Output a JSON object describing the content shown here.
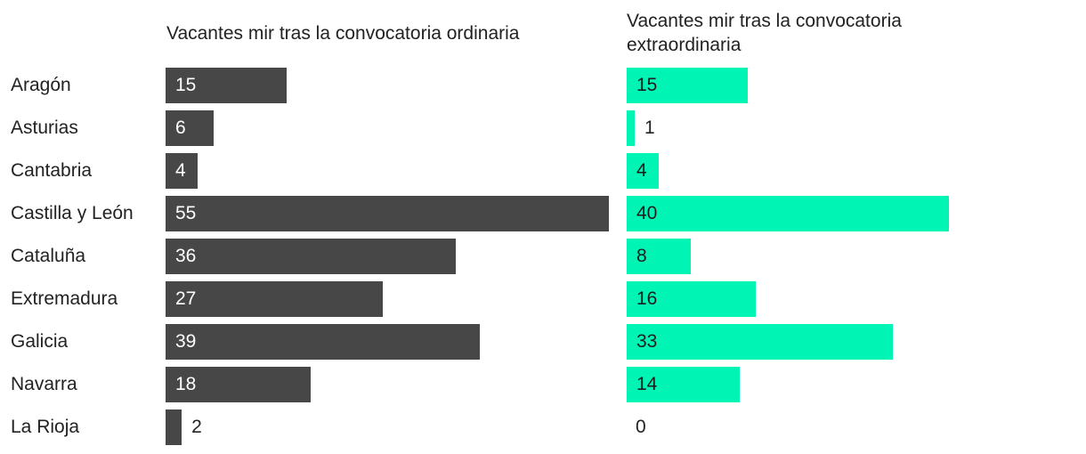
{
  "chart_data": {
    "type": "bar",
    "orientation": "horizontal",
    "categories": [
      "Aragón",
      "Asturias",
      "Cantabria",
      "Castilla y León",
      "Cataluña",
      "Extremadura",
      "Galicia",
      "Navarra",
      "La Rioja"
    ],
    "series": [
      {
        "name": "Vacantes mir tras la convocatoria ordinaria",
        "color": "#474747",
        "values": [
          15,
          6,
          4,
          55,
          36,
          27,
          39,
          18,
          2
        ]
      },
      {
        "name": "Vacantes mir tras la convocatoria extraordinaria",
        "color": "#00f5b5",
        "values": [
          15,
          1,
          4,
          40,
          8,
          16,
          33,
          14,
          0
        ]
      }
    ],
    "data_labels": true,
    "grid": false,
    "legend": "none"
  }
}
